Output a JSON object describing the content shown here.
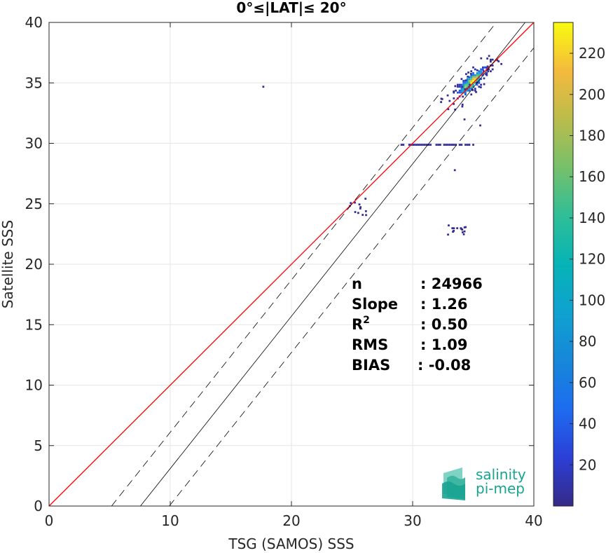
{
  "chart_data": {
    "type": "heatmap",
    "title": "0°≤|LAT|≤ 20°",
    "xlabel": "TSG (SAMOS) SSS",
    "ylabel": "Satellite SSS",
    "xlim": [
      0,
      40
    ],
    "ylim": [
      0,
      40
    ],
    "xticks": [
      "0",
      "10",
      "20",
      "30",
      "40"
    ],
    "yticks": [
      "0",
      "5",
      "10",
      "15",
      "20",
      "25",
      "30",
      "35",
      "40"
    ],
    "grid": true,
    "lines": {
      "identity": {
        "slope": 1,
        "intercept": 0,
        "color": "#ff0000"
      },
      "regression": {
        "slope": 1.26,
        "intercept": -9.5,
        "color": "#000000"
      },
      "regression_upper": {
        "slope": 1.26,
        "intercept": -6.5,
        "style": "dashed"
      },
      "regression_lower": {
        "slope": 1.26,
        "intercept": -12.5,
        "style": "dashed"
      }
    },
    "stats": [
      {
        "label": "n",
        "value": ": 24966"
      },
      {
        "label": "Slope",
        "value": ": 1.26"
      },
      {
        "label": "R",
        "sup": "2",
        "value": ": 0.50"
      },
      {
        "label": "RMS",
        "value": ": 1.09"
      },
      {
        "label": "BIAS",
        "value": ": -0.08"
      }
    ],
    "colorbar": {
      "min": 0,
      "max": 235,
      "ticks": [
        "20",
        "40",
        "60",
        "80",
        "100",
        "120",
        "140",
        "160",
        "180",
        "200",
        "220"
      ],
      "colormap": "parula"
    },
    "clusters": [
      {
        "cx": 34.8,
        "cy": 35.0,
        "sx": 0.9,
        "sy": 0.95,
        "peak": 235,
        "kind": "main"
      },
      {
        "x": [
          29,
          35
        ],
        "y": 29.8,
        "count": 4,
        "kind": "horizontal_band"
      },
      {
        "x": [
          24.6,
          26.2
        ],
        "y": [
          23.9,
          25.5
        ],
        "count": 2,
        "kind": "sparse"
      },
      {
        "x": [
          32.7,
          34.4
        ],
        "y": [
          22.3,
          23.2
        ],
        "count": 2,
        "kind": "sparse"
      },
      {
        "x": [
          17.6
        ],
        "y": [
          34.6
        ],
        "count": 1,
        "kind": "isolated"
      }
    ]
  },
  "logo": {
    "line1": "salinity",
    "line2": "pi-mep",
    "color": "#1aa391"
  }
}
